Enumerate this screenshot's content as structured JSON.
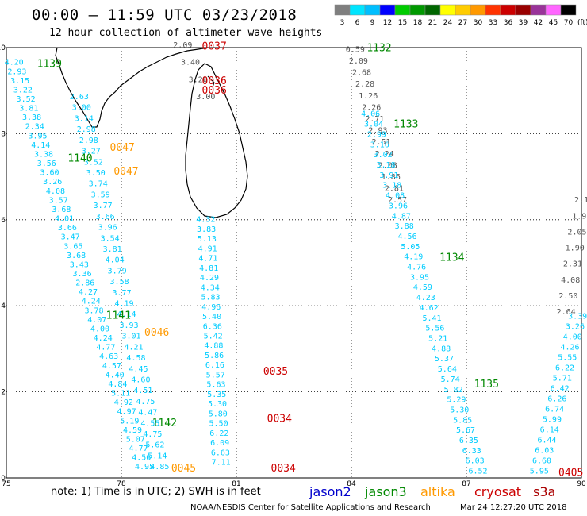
{
  "title": "00:00 – 11:59 UTC 03/23/2018",
  "subtitle": "12 hour collection of altimeter wave heights",
  "legend": {
    "labels": [
      "3",
      "6",
      "9",
      "12",
      "15",
      "18",
      "21",
      "24",
      "27",
      "30",
      "33",
      "36",
      "39",
      "42",
      "45",
      "70"
    ],
    "unit": "(ft)",
    "colors": [
      "#7f7f7f",
      "#00e5ff",
      "#00bfff",
      "#0000ff",
      "#00cc00",
      "#009900",
      "#006600",
      "#ffff00",
      "#ffcc00",
      "#ff9900",
      "#ff3300",
      "#cc0000",
      "#990000",
      "#993399",
      "#ff66ff",
      "#000000"
    ]
  },
  "axes": {
    "x_ticks": [
      "75",
      "78",
      "81",
      "84",
      "87",
      "90"
    ],
    "y_ticks": [
      "10",
      "8",
      "6",
      "4",
      "2",
      "0"
    ]
  },
  "note": "note: 1) Time is in UTC; 2) SWH is in feet",
  "satellites": [
    {
      "name": "jason2",
      "color": "#0000cc"
    },
    {
      "name": "jason3",
      "color": "#008800"
    },
    {
      "name": "altika",
      "color": "#ff9900"
    },
    {
      "name": "cryosat",
      "color": "#cc0000"
    },
    {
      "name": "s3a",
      "color": "#aa0000"
    }
  ],
  "footer_left": "NOAA/NESDIS Center for Satellite Applications and Research",
  "footer_right": "Mar 24 12:27:20 UTC 2018",
  "colors": {
    "gray": "#555555",
    "cyan": "#00ccff",
    "green": "#008800",
    "orange": "#ff9900",
    "red": "#cc0000"
  },
  "tracks": [
    {
      "id": "track1",
      "color_key": "cyan",
      "lon0": 75.2,
      "lat0": 9.6,
      "lon1": 78.6,
      "lat1": 0.2,
      "values": [
        "4.20",
        "2.93",
        "3.15",
        "3.22",
        "3.52",
        "3.81",
        "3.38",
        "2.34",
        "3.95",
        "4.14",
        "3.38",
        "3.56",
        "3.60",
        "3.26",
        "4.08",
        "3.57",
        "3.68",
        "4.01",
        "3.66",
        "3.47",
        "3.65",
        "3.68",
        "3.43",
        "3.36",
        "2.86",
        "4.27",
        "4.24",
        "3.78",
        "4.07",
        "4.00",
        "4.24",
        "4.77",
        "4.63",
        "4.57",
        "4.40",
        "4.84",
        "5.11",
        "4.92",
        "4.97",
        "5.19",
        "4.59",
        "5.07",
        "4.77",
        "4.56",
        "4.95"
      ]
    },
    {
      "id": "track2",
      "color_key": "cyan",
      "lon0": 76.9,
      "lat0": 8.8,
      "lon1": 79.0,
      "lat1": 0.2,
      "values": [
        "2.63",
        "3.00",
        "3.14",
        "2.98",
        "2.98",
        "3.27",
        "3.52",
        "3.50",
        "3.74",
        "3.59",
        "3.77",
        "3.66",
        "3.96",
        "3.54",
        "3.81",
        "4.04",
        "3.79",
        "3.58",
        "3.77",
        "4.19",
        "4.14",
        "3.93",
        "3.01",
        "4.21",
        "4.58",
        "4.45",
        "4.60",
        "4.51",
        "4.75",
        "4.47",
        "4.55",
        "4.75",
        "5.62",
        "5.14",
        "4.85"
      ]
    },
    {
      "id": "track3",
      "color_key": "cyan",
      "lon0": 80.2,
      "lat0": 5.95,
      "lon1": 80.6,
      "lat1": 0.3,
      "values": [
        "4.32",
        "3.83",
        "5.13",
        "4.91",
        "4.71",
        "4.81",
        "4.29",
        "4.34",
        "5.83",
        "4.96",
        "5.40",
        "6.36",
        "5.42",
        "4.88",
        "5.86",
        "6.16",
        "5.57",
        "5.63",
        "5.35",
        "5.30",
        "5.80",
        "5.50",
        "6.22",
        "6.09",
        "6.63",
        "7.11"
      ]
    },
    {
      "id": "track4",
      "color_key": "gray",
      "lon0": 79.6,
      "lat0": 10.0,
      "lon1": 80.2,
      "lat1": 8.8,
      "values": [
        "2.09",
        "3.40",
        "3.20",
        "3.00"
      ]
    },
    {
      "id": "track5",
      "color_key": "gray",
      "lon0": 84.1,
      "lat0": 9.9,
      "lon1": 85.2,
      "lat1": 6.4,
      "values": [
        "0.59",
        "2.09",
        "2.68",
        "2.28",
        "1.26",
        "2.26",
        "2.71",
        "2.93",
        "2.51",
        "2.24",
        "2.08",
        "1.86",
        "2.81",
        "2.57"
      ]
    },
    {
      "id": "track6",
      "color_key": "cyan",
      "lon0": 84.5,
      "lat0": 8.4,
      "lon1": 87.3,
      "lat1": 0.1,
      "values": [
        "4.06",
        "3.04",
        "2.99",
        "3.16",
        "3.02",
        "3.18",
        "3.91",
        "3.18",
        "4.08",
        "3.96",
        "4.87",
        "3.88",
        "4.56",
        "5.05",
        "4.19",
        "4.76",
        "3.95",
        "4.59",
        "4.23",
        "4.62",
        "5.41",
        "5.56",
        "5.21",
        "4.88",
        "5.37",
        "5.64",
        "5.74",
        "5.82",
        "5.29",
        "5.30",
        "5.85",
        "5.67",
        "6.35",
        "6.33",
        "6.03",
        "6.52"
      ]
    },
    {
      "id": "track7",
      "color_key": "cyan",
      "lon0": 89.9,
      "lat0": 3.7,
      "lon1": 88.9,
      "lat1": 0.1,
      "values": [
        "3.39",
        "3.26",
        "4.00",
        "4.26",
        "5.55",
        "6.22",
        "5.71",
        "6.42",
        "6.26",
        "6.74",
        "5.99",
        "6.14",
        "6.44",
        "6.03",
        "6.60",
        "5.95"
      ]
    },
    {
      "id": "track8",
      "color_key": "gray",
      "lon0": 90.0,
      "lat0": 6.4,
      "lon1": 89.6,
      "lat1": 3.8,
      "values": [
        "2.1",
        "1.9",
        "2.05",
        "1.90",
        "2.31",
        "4.08",
        "2.50",
        "2.64"
      ]
    }
  ],
  "time_labels": [
    {
      "text": "1132",
      "color_key": "green",
      "lon": 84.4,
      "lat": 9.92
    },
    {
      "text": "1133",
      "color_key": "green",
      "lon": 85.1,
      "lat": 8.15
    },
    {
      "text": "1134",
      "color_key": "green",
      "lon": 86.3,
      "lat": 5.05
    },
    {
      "text": "1135",
      "color_key": "green",
      "lon": 87.2,
      "lat": 2.1
    },
    {
      "text": "1139",
      "color_key": "green",
      "lon": 75.8,
      "lat": 9.55
    },
    {
      "text": "1140",
      "color_key": "green",
      "lon": 76.6,
      "lat": 7.35
    },
    {
      "text": "1141",
      "color_key": "green",
      "lon": 77.6,
      "lat": 3.7
    },
    {
      "text": "1142",
      "color_key": "green",
      "lon": 78.8,
      "lat": 1.2
    },
    {
      "text": "0037",
      "color_key": "red",
      "lon": 80.1,
      "lat": 9.95
    },
    {
      "text": "0036",
      "color_key": "red",
      "lon": 80.1,
      "lat": 9.15
    },
    {
      "text": "0036",
      "color_key": "red",
      "lon": 80.1,
      "lat": 8.93
    },
    {
      "text": "0035",
      "color_key": "red",
      "lon": 81.7,
      "lat": 2.4
    },
    {
      "text": "0034",
      "color_key": "red",
      "lon": 81.8,
      "lat": 1.3
    },
    {
      "text": "0034",
      "color_key": "red",
      "lon": 81.9,
      "lat": 0.15
    },
    {
      "text": "0405",
      "color_key": "red",
      "lon": 89.4,
      "lat": 0.05
    },
    {
      "text": "0047",
      "color_key": "orange",
      "lon": 77.7,
      "lat": 7.6
    },
    {
      "text": "0047",
      "color_key": "orange",
      "lon": 77.8,
      "lat": 7.05
    },
    {
      "text": "0046",
      "color_key": "orange",
      "lon": 78.6,
      "lat": 3.3
    },
    {
      "text": "0045",
      "color_key": "orange",
      "lon": 79.3,
      "lat": 0.15
    }
  ]
}
